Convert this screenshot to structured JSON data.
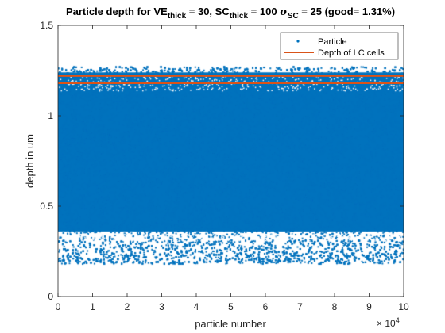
{
  "chart_data": {
    "type": "scatter",
    "title_parts": {
      "t1": "Particle depth for VE",
      "s1": "thick",
      "t2": " = 30, SC",
      "s2": "thick",
      "t3": " = 100 ",
      "sigma": "σ",
      "s3": "SC",
      "t4": " = 25 (good= 1.31%)"
    },
    "xlabel": "particle number",
    "ylabel": "depth in um",
    "x_exponent_base": "× 10",
    "x_exponent_power": "4",
    "xlim": [
      0,
      100000
    ],
    "ylim": [
      0,
      1.5
    ],
    "x_ticks": [
      0,
      10000,
      20000,
      30000,
      40000,
      50000,
      60000,
      70000,
      80000,
      90000,
      100000
    ],
    "x_tick_labels": [
      "0",
      "1",
      "2",
      "3",
      "4",
      "5",
      "6",
      "7",
      "8",
      "9",
      "10"
    ],
    "y_ticks": [
      0,
      0.5,
      1,
      1.5
    ],
    "y_tick_labels": [
      "0",
      "0.5",
      "1",
      "1.5"
    ],
    "grid": false,
    "legend_position": "top-right",
    "series": [
      {
        "name": "Particle",
        "kind": "scatter",
        "color": "#0072BD",
        "n_points": 100000,
        "depth_range": [
          0.18,
          1.27
        ],
        "dense_band": [
          0.36,
          1.24
        ],
        "sparse_band": [
          0.31,
          0.35
        ]
      },
      {
        "name": "Depth of LC cells",
        "kind": "hline",
        "color": "#D95319",
        "y_values": [
          1.18,
          1.22
        ]
      }
    ]
  }
}
